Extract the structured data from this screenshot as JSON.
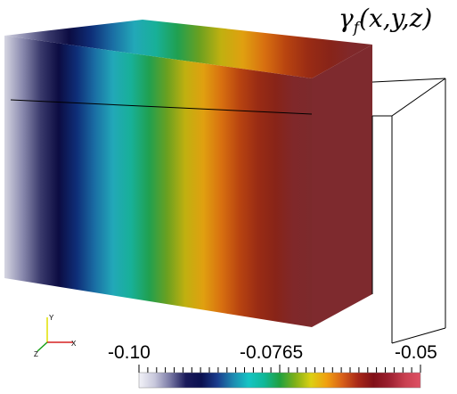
{
  "title": {
    "symbol": "γ",
    "subscript": "f",
    "args": "(x,y,z)"
  },
  "axes_triad": {
    "x_label": "X",
    "y_label": "Y",
    "z_label": "Z",
    "x_color": "#d62020",
    "y_color": "#e0e000",
    "z_color": "#18a018"
  },
  "colorbar": {
    "min_label": "-0.10",
    "mid_label": "-0.0765",
    "max_label": "-0.05",
    "colors": [
      "#f2f2f8",
      "#c8c8dc",
      "#7878a4",
      "#1a1a5a",
      "#0a1050",
      "#1a3c8c",
      "#1e88b0",
      "#16c4c4",
      "#10b898",
      "#20a040",
      "#80b018",
      "#dcd014",
      "#f0a010",
      "#d86018",
      "#a82818",
      "#801018",
      "#9c2030",
      "#c84050",
      "#de5064"
    ]
  },
  "box_colormap": [
    "#d6d6e2",
    "#8a8aae",
    "#3a3a6c",
    "#0c0c42",
    "#0e2e78",
    "#1a6ea4",
    "#22a8b8",
    "#18b098",
    "#20a050",
    "#6aa020",
    "#c0b010",
    "#e0a010",
    "#d87010",
    "#b84410",
    "#9a2c14",
    "#882418",
    "#80282a",
    "#7c2a2c"
  ]
}
